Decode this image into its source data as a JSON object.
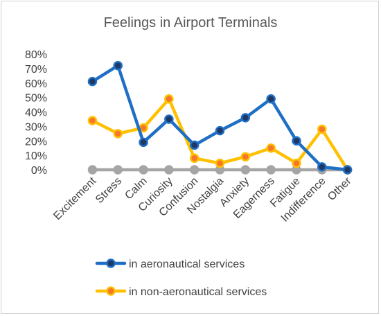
{
  "chart_data": {
    "type": "line",
    "title": "Feelings in Airport Terminals",
    "xlabel": "",
    "ylabel": "",
    "ylim": [
      0,
      0.8
    ],
    "y_ticks": [
      "0%",
      "10%",
      "20%",
      "30%",
      "40%",
      "50%",
      "60%",
      "70%",
      "80%"
    ],
    "categories": [
      "Excitement",
      "Stress",
      "Calm",
      "Curiosity",
      "Confusion",
      "Nostalgia",
      "Anxiety",
      "Eagerness",
      "Fatigue",
      "Indifference",
      "Other"
    ],
    "grid": false,
    "legend_position": "bottom",
    "series": [
      {
        "name": "in aeronautical services",
        "color": "#1F6FC5",
        "marker_fill": "#1F3864",
        "values": [
          0.61,
          0.72,
          0.19,
          0.35,
          0.17,
          0.27,
          0.36,
          0.49,
          0.2,
          0.02,
          0.0
        ]
      },
      {
        "name": "in non-aeronautical services",
        "color": "#FFC000",
        "marker_fill": "#F4772A",
        "values": [
          0.34,
          0.25,
          0.29,
          0.49,
          0.08,
          0.045,
          0.09,
          0.15,
          0.045,
          0.28,
          0.0
        ]
      },
      {
        "name": "",
        "color": "#A5A5A5",
        "marker_fill": "#A5A5A5",
        "values": [
          0,
          0,
          0,
          0,
          0,
          0,
          0,
          0,
          0,
          0,
          0
        ]
      }
    ]
  }
}
